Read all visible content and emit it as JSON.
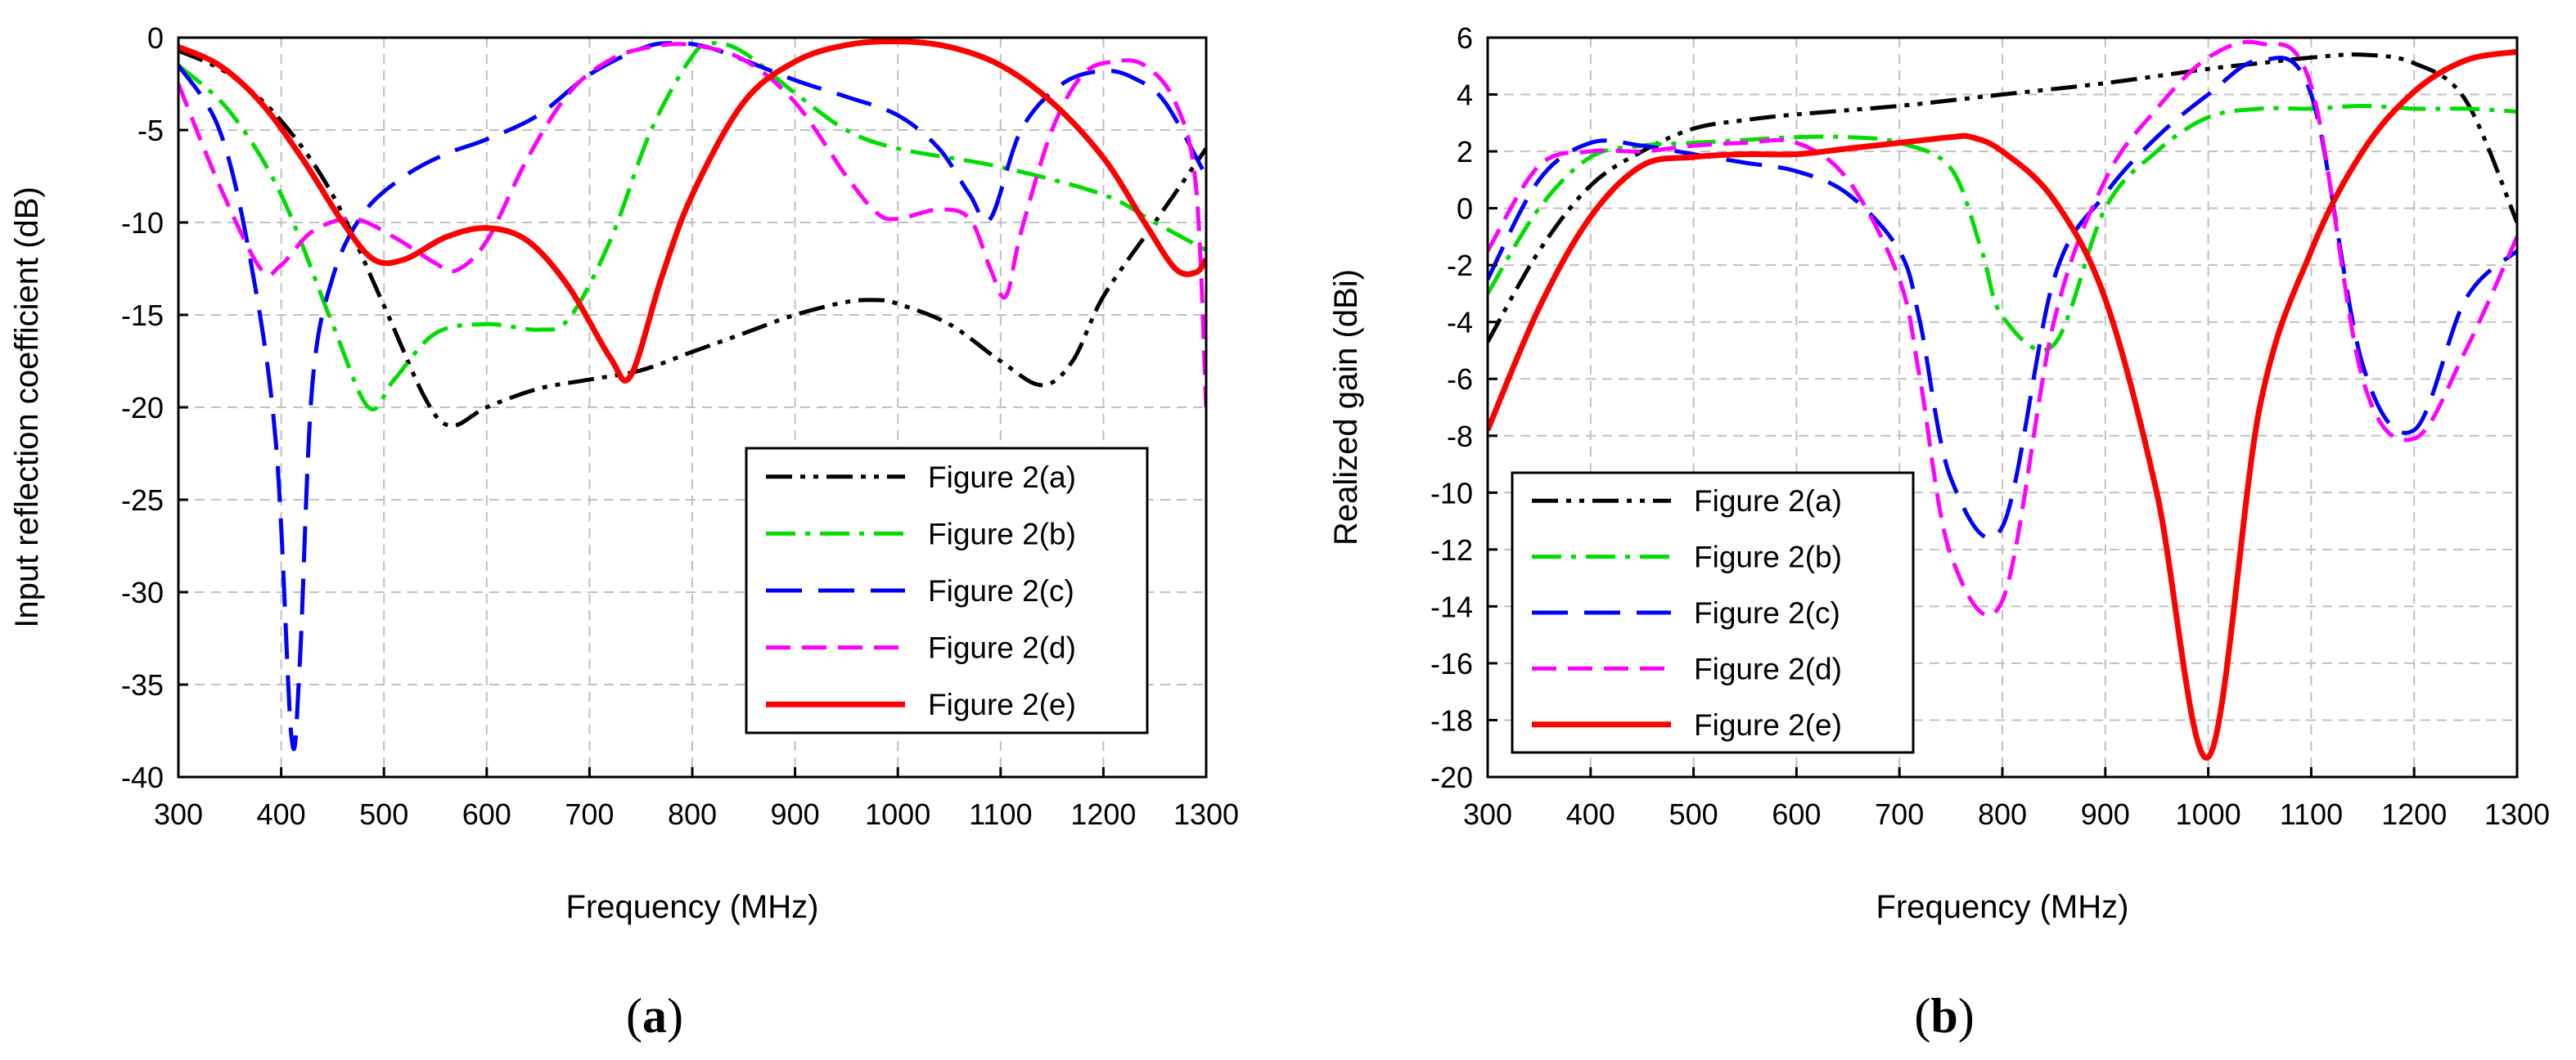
{
  "chart_data": [
    {
      "type": "line",
      "panel": "a",
      "caption": {
        "open": "(",
        "letter": "a",
        "close": ")"
      },
      "title": "",
      "xlabel": "Frequency (MHz)",
      "ylabel": "Input reflection coefficient (dB)",
      "xlim": [
        300,
        1300
      ],
      "ylim": [
        -40,
        0
      ],
      "xticks": [
        300,
        400,
        500,
        600,
        700,
        800,
        900,
        1000,
        1100,
        1200,
        1300
      ],
      "yticks": [
        0,
        -5,
        -10,
        -15,
        -20,
        -25,
        -30,
        -35,
        -40
      ],
      "grid": true,
      "legend_position": "bottom-right",
      "series": [
        {
          "name": "Figure 2(a)",
          "color": "#000000",
          "dash": "dashdotdot",
          "points": [
            [
              300,
              -0.7
            ],
            [
              350,
              -2
            ],
            [
              400,
              -4.5
            ],
            [
              450,
              -8.5
            ],
            [
              500,
              -14.5
            ],
            [
              540,
              -19.5
            ],
            [
              565,
              -21
            ],
            [
              600,
              -20
            ],
            [
              650,
              -19
            ],
            [
              700,
              -18.5
            ],
            [
              750,
              -18
            ],
            [
              800,
              -17
            ],
            [
              850,
              -16
            ],
            [
              900,
              -15
            ],
            [
              950,
              -14.3
            ],
            [
              980,
              -14.2
            ],
            [
              1000,
              -14.4
            ],
            [
              1050,
              -15.5
            ],
            [
              1100,
              -17.5
            ],
            [
              1140,
              -18.8
            ],
            [
              1170,
              -17.5
            ],
            [
              1200,
              -14
            ],
            [
              1250,
              -10
            ],
            [
              1300,
              -6
            ]
          ]
        },
        {
          "name": "Figure 2(b)",
          "color": "#00dd00",
          "dash": "dashdot",
          "points": [
            [
              300,
              -1.5
            ],
            [
              350,
              -4
            ],
            [
              400,
              -8.5
            ],
            [
              450,
              -15.5
            ],
            [
              485,
              -20
            ],
            [
              510,
              -18.5
            ],
            [
              550,
              -16
            ],
            [
              600,
              -15.5
            ],
            [
              650,
              -15.8
            ],
            [
              680,
              -15.2
            ],
            [
              720,
              -11
            ],
            [
              760,
              -5
            ],
            [
              800,
              -1
            ],
            [
              820,
              -0.3
            ],
            [
              850,
              -0.8
            ],
            [
              900,
              -3
            ],
            [
              950,
              -5
            ],
            [
              1000,
              -6
            ],
            [
              1100,
              -7
            ],
            [
              1200,
              -8.5
            ],
            [
              1250,
              -10
            ],
            [
              1300,
              -11.5
            ]
          ]
        },
        {
          "name": "Figure 2(c)",
          "color": "#0000ff",
          "dash": "longdash",
          "points": [
            [
              300,
              -1.5
            ],
            [
              340,
              -5
            ],
            [
              370,
              -12
            ],
            [
              395,
              -22
            ],
            [
              410,
              -37.8
            ],
            [
              418,
              -34
            ],
            [
              430,
              -19
            ],
            [
              450,
              -13
            ],
            [
              480,
              -9.5
            ],
            [
              520,
              -7.5
            ],
            [
              560,
              -6.3
            ],
            [
              600,
              -5.5
            ],
            [
              650,
              -4.2
            ],
            [
              700,
              -2
            ],
            [
              750,
              -0.6
            ],
            [
              780,
              -0.3
            ],
            [
              820,
              -0.6
            ],
            [
              900,
              -2.3
            ],
            [
              950,
              -3.2
            ],
            [
              1000,
              -4.2
            ],
            [
              1040,
              -6
            ],
            [
              1070,
              -8.5
            ],
            [
              1090,
              -9.8
            ],
            [
              1120,
              -5
            ],
            [
              1160,
              -2.5
            ],
            [
              1200,
              -1.8
            ],
            [
              1230,
              -2.2
            ],
            [
              1260,
              -3.5
            ],
            [
              1300,
              -7.5
            ]
          ]
        },
        {
          "name": "Figure 2(d)",
          "color": "#ff00ff",
          "dash": "dash",
          "points": [
            [
              300,
              -2.5
            ],
            [
              340,
              -8
            ],
            [
              380,
              -12.5
            ],
            [
              400,
              -12.3
            ],
            [
              430,
              -10.5
            ],
            [
              470,
              -9.8
            ],
            [
              510,
              -10.8
            ],
            [
              550,
              -12.2
            ],
            [
              570,
              -12.6
            ],
            [
              600,
              -11
            ],
            [
              640,
              -6.5
            ],
            [
              680,
              -3
            ],
            [
              720,
              -1.2
            ],
            [
              760,
              -0.5
            ],
            [
              800,
              -0.4
            ],
            [
              850,
              -1.2
            ],
            [
              900,
              -3.5
            ],
            [
              950,
              -7.5
            ],
            [
              980,
              -9.5
            ],
            [
              1000,
              -9.8
            ],
            [
              1040,
              -9.3
            ],
            [
              1070,
              -9.8
            ],
            [
              1090,
              -12.5
            ],
            [
              1105,
              -14
            ],
            [
              1120,
              -10.5
            ],
            [
              1150,
              -5
            ],
            [
              1180,
              -2
            ],
            [
              1210,
              -1.3
            ],
            [
              1240,
              -1.5
            ],
            [
              1270,
              -3.5
            ],
            [
              1290,
              -8
            ],
            [
              1300,
              -20
            ]
          ]
        },
        {
          "name": "Figure 2(e)",
          "color": "#ff0000",
          "dash": "solid",
          "points": [
            [
              300,
              -0.5
            ],
            [
              340,
              -1.5
            ],
            [
              380,
              -3.5
            ],
            [
              420,
              -6.5
            ],
            [
              460,
              -10
            ],
            [
              490,
              -12
            ],
            [
              520,
              -12
            ],
            [
              560,
              -10.8
            ],
            [
              600,
              -10.3
            ],
            [
              640,
              -11
            ],
            [
              680,
              -13.5
            ],
            [
              720,
              -17.3
            ],
            [
              740,
              -18.3
            ],
            [
              770,
              -13
            ],
            [
              800,
              -8.5
            ],
            [
              850,
              -3.5
            ],
            [
              900,
              -1.3
            ],
            [
              950,
              -0.4
            ],
            [
              1000,
              -0.2
            ],
            [
              1050,
              -0.5
            ],
            [
              1100,
              -1.5
            ],
            [
              1150,
              -3.5
            ],
            [
              1200,
              -6.5
            ],
            [
              1240,
              -10
            ],
            [
              1270,
              -12.5
            ],
            [
              1290,
              -12.7
            ],
            [
              1300,
              -12
            ]
          ]
        }
      ]
    },
    {
      "type": "line",
      "panel": "b",
      "caption": {
        "open": "(",
        "letter": "b",
        "close": ")"
      },
      "title": "",
      "xlabel": "Frequency (MHz)",
      "ylabel": "Realized gain (dBi)",
      "xlim": [
        300,
        1300
      ],
      "ylim": [
        -20,
        6
      ],
      "xticks": [
        300,
        400,
        500,
        600,
        700,
        800,
        900,
        1000,
        1100,
        1200,
        1300
      ],
      "yticks": [
        6,
        4,
        2,
        0,
        -2,
        -4,
        -6,
        -8,
        -10,
        -12,
        -14,
        -16,
        -18,
        -20
      ],
      "grid": true,
      "legend_position": "bottom-left",
      "series": [
        {
          "name": "Figure 2(a)",
          "color": "#000000",
          "dash": "dashdotdot",
          "points": [
            [
              300,
              -4.7
            ],
            [
              350,
              -1.5
            ],
            [
              400,
              0.8
            ],
            [
              450,
              2
            ],
            [
              500,
              2.8
            ],
            [
              550,
              3.1
            ],
            [
              600,
              3.3
            ],
            [
              700,
              3.6
            ],
            [
              800,
              4
            ],
            [
              900,
              4.4
            ],
            [
              1000,
              4.9
            ],
            [
              1050,
              5.1
            ],
            [
              1100,
              5.3
            ],
            [
              1150,
              5.4
            ],
            [
              1200,
              5.1
            ],
            [
              1250,
              3.8
            ],
            [
              1300,
              -0.5
            ]
          ]
        },
        {
          "name": "Figure 2(b)",
          "color": "#00dd00",
          "dash": "dashdot",
          "points": [
            [
              300,
              -3
            ],
            [
              350,
              0
            ],
            [
              400,
              1.8
            ],
            [
              450,
              2.2
            ],
            [
              500,
              2.3
            ],
            [
              550,
              2.4
            ],
            [
              600,
              2.5
            ],
            [
              650,
              2.5
            ],
            [
              700,
              2.3
            ],
            [
              750,
              1.4
            ],
            [
              780,
              -1.5
            ],
            [
              800,
              -3.8
            ],
            [
              850,
              -4.8
            ],
            [
              900,
              0
            ],
            [
              950,
              2
            ],
            [
              1000,
              3.2
            ],
            [
              1050,
              3.5
            ],
            [
              1100,
              3.5
            ],
            [
              1150,
              3.6
            ],
            [
              1200,
              3.5
            ],
            [
              1250,
              3.5
            ],
            [
              1300,
              3.4
            ]
          ]
        },
        {
          "name": "Figure 2(c)",
          "color": "#0000ff",
          "dash": "longdash",
          "points": [
            [
              300,
              -2.5
            ],
            [
              350,
              1
            ],
            [
              400,
              2.3
            ],
            [
              450,
              2.2
            ],
            [
              500,
              1.9
            ],
            [
              550,
              1.6
            ],
            [
              600,
              1.3
            ],
            [
              650,
              0.5
            ],
            [
              700,
              -1.5
            ],
            [
              720,
              -4
            ],
            [
              750,
              -9.5
            ],
            [
              800,
              -11.2
            ],
            [
              850,
              -2.5
            ],
            [
              900,
              0.5
            ],
            [
              950,
              2.5
            ],
            [
              1000,
              4
            ],
            [
              1050,
              5.2
            ],
            [
              1100,
              4
            ],
            [
              1150,
              -5.5
            ],
            [
              1200,
              -7.8
            ],
            [
              1250,
              -3.2
            ],
            [
              1300,
              -1.5
            ]
          ]
        },
        {
          "name": "Figure 2(d)",
          "color": "#ff00ff",
          "dash": "dash",
          "points": [
            [
              300,
              -1.5
            ],
            [
              350,
              1.5
            ],
            [
              400,
              2
            ],
            [
              450,
              2
            ],
            [
              500,
              2.2
            ],
            [
              550,
              2.3
            ],
            [
              600,
              2.3
            ],
            [
              650,
              1
            ],
            [
              700,
              -2.5
            ],
            [
              720,
              -6
            ],
            [
              750,
              -12.2
            ],
            [
              800,
              -13.8
            ],
            [
              850,
              -4
            ],
            [
              900,
              1
            ],
            [
              950,
              3.5
            ],
            [
              1000,
              5.3
            ],
            [
              1050,
              5.8
            ],
            [
              1100,
              4.3
            ],
            [
              1150,
              -6
            ],
            [
              1200,
              -8.1
            ],
            [
              1250,
              -5
            ],
            [
              1300,
              -1
            ]
          ]
        },
        {
          "name": "Figure 2(e)",
          "color": "#ff0000",
          "dash": "solid",
          "points": [
            [
              300,
              -7.8
            ],
            [
              350,
              -3.5
            ],
            [
              400,
              -0.3
            ],
            [
              450,
              1.5
            ],
            [
              500,
              1.8
            ],
            [
              550,
              1.9
            ],
            [
              600,
              1.9
            ],
            [
              650,
              2.1
            ],
            [
              700,
              2.3
            ],
            [
              750,
              2.5
            ],
            [
              770,
              2.5
            ],
            [
              800,
              2
            ],
            [
              850,
              0.3
            ],
            [
              900,
              -3.2
            ],
            [
              950,
              -10
            ],
            [
              1000,
              -19.3
            ],
            [
              1050,
              -7
            ],
            [
              1100,
              -1.5
            ],
            [
              1150,
              2
            ],
            [
              1200,
              4.1
            ],
            [
              1250,
              5.2
            ],
            [
              1300,
              5.5
            ]
          ]
        }
      ]
    }
  ]
}
